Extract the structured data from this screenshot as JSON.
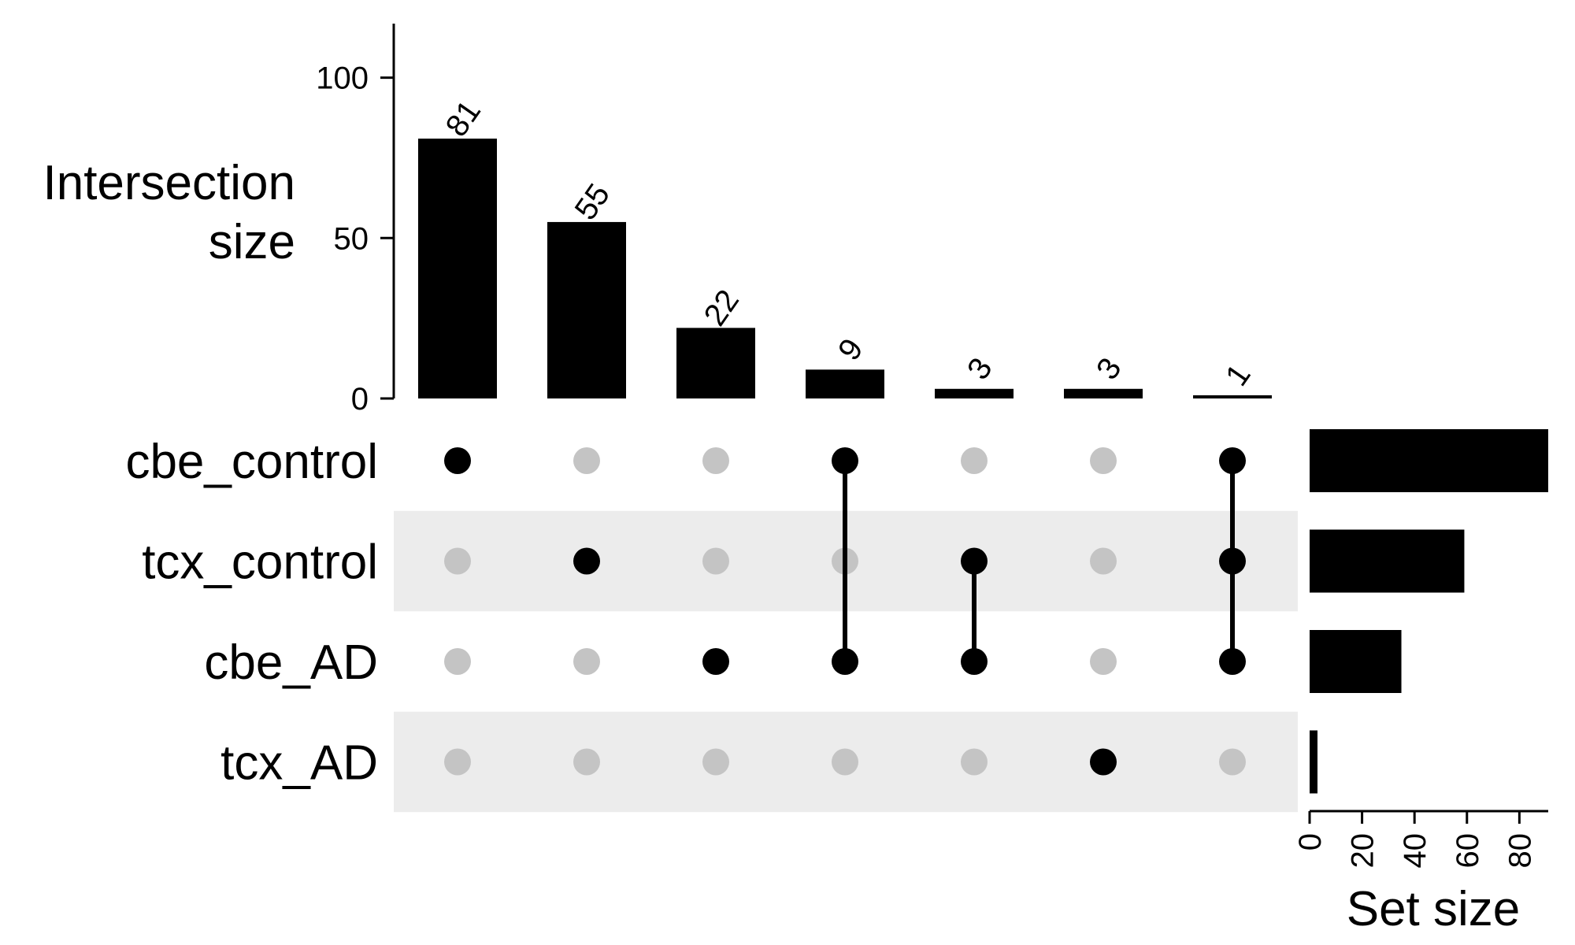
{
  "chart_data": {
    "type": "bar",
    "intersection_axis": {
      "title_lines": [
        "Intersection",
        "size"
      ],
      "ticks": [
        0,
        50,
        100
      ],
      "ylim": [
        0,
        108
      ]
    },
    "sets": [
      "cbe_control",
      "tcx_control",
      "cbe_AD",
      "tcx_AD"
    ],
    "intersections": [
      {
        "members": [
          "cbe_control"
        ],
        "value": 81,
        "label": "81"
      },
      {
        "members": [
          "tcx_control"
        ],
        "value": 55,
        "label": "55"
      },
      {
        "members": [
          "cbe_AD"
        ],
        "value": 22,
        "label": "22"
      },
      {
        "members": [
          "cbe_control",
          "cbe_AD"
        ],
        "value": 9,
        "label": "9"
      },
      {
        "members": [
          "tcx_control",
          "cbe_AD"
        ],
        "value": 3,
        "label": "3"
      },
      {
        "members": [
          "tcx_AD"
        ],
        "value": 3,
        "label": "3"
      },
      {
        "members": [
          "cbe_control",
          "tcx_control",
          "cbe_AD"
        ],
        "value": 1,
        "label": "1"
      }
    ],
    "set_size_axis": {
      "title": "Set size",
      "ticks": [
        0,
        20,
        40,
        60,
        80
      ],
      "xlim": [
        0,
        91
      ]
    },
    "set_sizes": [
      91,
      59,
      35,
      3
    ],
    "colors": {
      "bar": "#000000",
      "dot_active": "#000000",
      "dot_inactive": "#c4c4c4",
      "stripe": "#ececec"
    }
  }
}
